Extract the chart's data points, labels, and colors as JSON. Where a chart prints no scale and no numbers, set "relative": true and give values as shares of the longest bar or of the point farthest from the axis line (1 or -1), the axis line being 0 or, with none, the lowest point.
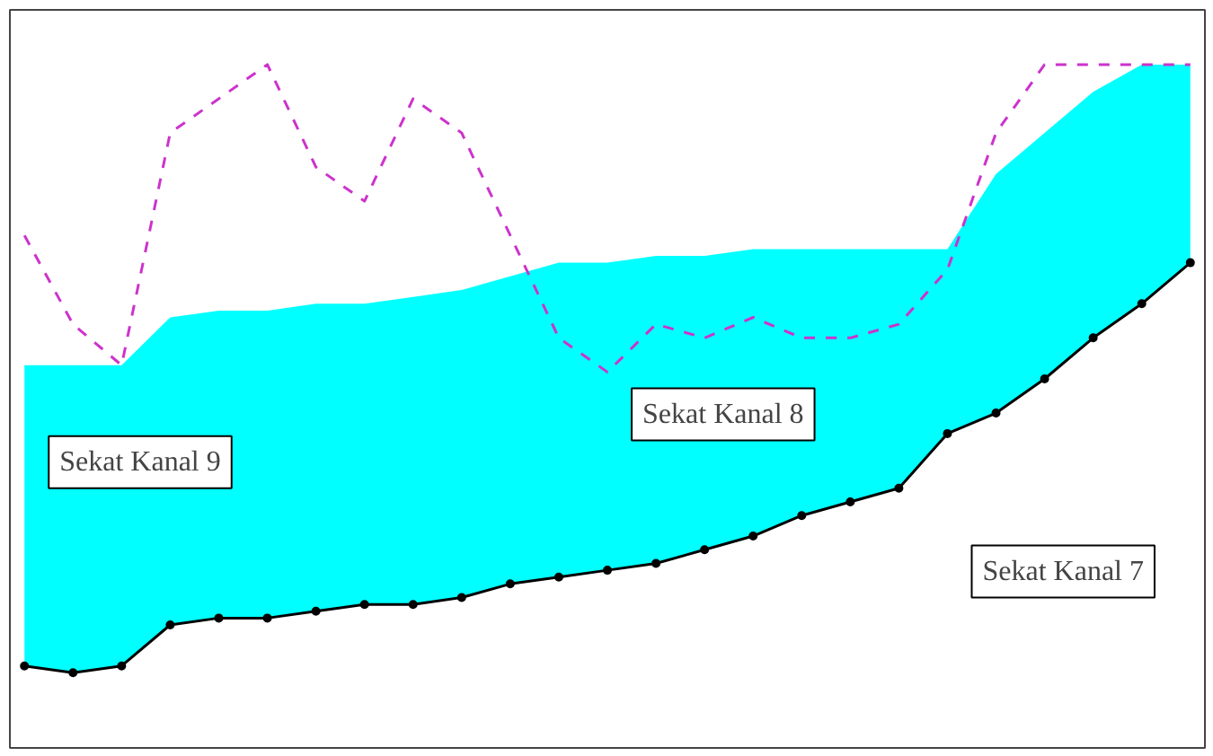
{
  "chart_data": {
    "type": "line",
    "relative": true,
    "categories": [
      null,
      null,
      null,
      null,
      null,
      null,
      null,
      null,
      null,
      null,
      null,
      null,
      null,
      null,
      null,
      null,
      null,
      null,
      null,
      null,
      null,
      null,
      null,
      null,
      null
    ],
    "series": [
      {
        "color": "#000000",
        "marker": "circle",
        "line_style": "solid",
        "values": [
          0.12,
          0.11,
          0.12,
          0.18,
          0.19,
          0.19,
          0.2,
          0.21,
          0.21,
          0.22,
          0.24,
          0.25,
          0.26,
          0.27,
          0.29,
          0.31,
          0.34,
          0.36,
          0.38,
          0.46,
          0.49,
          0.54,
          0.6,
          0.65,
          0.71
        ]
      },
      {
        "type": "area",
        "color": "#00ffff",
        "values": [
          0.56,
          0.56,
          0.56,
          0.63,
          0.64,
          0.64,
          0.65,
          0.65,
          0.66,
          0.67,
          0.69,
          0.71,
          0.71,
          0.72,
          0.72,
          0.73,
          0.73,
          0.73,
          0.73,
          0.73,
          0.84,
          0.9,
          0.96,
          1,
          1
        ]
      },
      {
        "color": "#cc33cc",
        "marker": "none",
        "line_style": "dashed",
        "values": [
          0.75,
          0.62,
          0.56,
          0.9,
          0.95,
          1,
          0.85,
          0.8,
          0.95,
          0.9,
          0.75,
          0.6,
          0.55,
          0.62,
          0.6,
          0.63,
          0.6,
          0.6,
          0.62,
          0.7,
          0.9,
          1,
          1,
          1,
          1
        ]
      }
    ],
    "annotations": [
      "Sekat Kanal 9",
      "Sekat Kanal 8",
      "Sekat Kanal 7"
    ],
    "grid": false
  }
}
